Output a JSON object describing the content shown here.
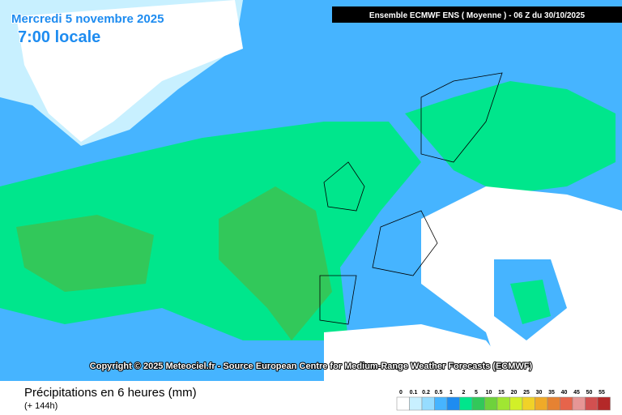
{
  "header": {
    "date": "Mercredi 5 novembre 2025",
    "time": "7:00 locale",
    "model": "Ensemble ECMWF ENS  ( Moyenne )  -  06 Z du 30/10/2025"
  },
  "copyright": "Copyright © 2025 Meteociel.fr - Source European Centre for Medium-Range Weather Forecasts (ECMWF)",
  "footer": {
    "title": "Précipitations en 6 heures (mm)",
    "subtitle": "(+ 144h)"
  },
  "legend": {
    "ticks": [
      0,
      0.1,
      0.2,
      0.5,
      1,
      2,
      5,
      10,
      15,
      20,
      25,
      30,
      35,
      40,
      45,
      50,
      55
    ],
    "colors": [
      "#ffffff",
      "#c8f0ff",
      "#96dcff",
      "#46b4ff",
      "#1e8cf0",
      "#00e68c",
      "#32c85a",
      "#6ed23c",
      "#a0e632",
      "#d2f028",
      "#f0d228",
      "#f0aa28",
      "#e68232",
      "#e6644b",
      "#e69696",
      "#d25050",
      "#b42828"
    ]
  }
}
